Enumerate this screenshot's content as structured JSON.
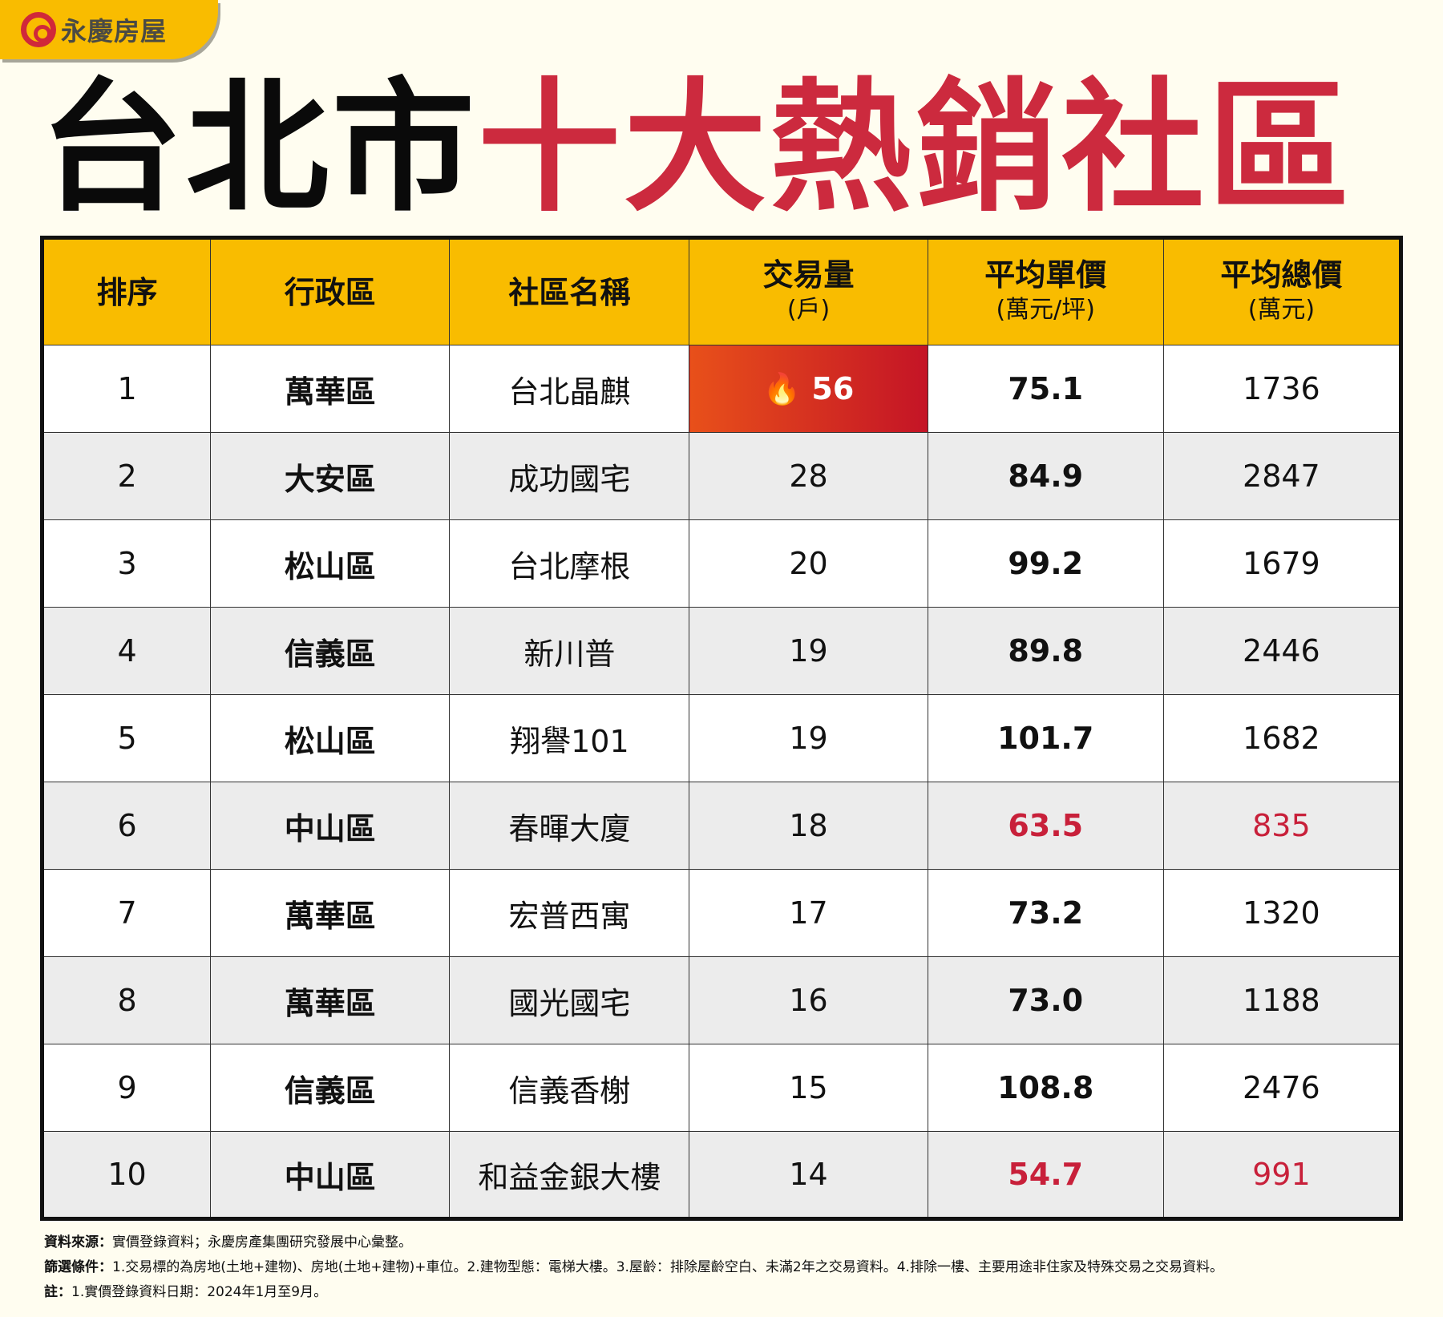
{
  "logo": {
    "text": "永慶房屋"
  },
  "title": {
    "black": "台北市",
    "red": "十大熱銷社區"
  },
  "colors": {
    "accent": "#f9bc00",
    "red": "#cc2a3e",
    "hot": "#d8321f"
  },
  "table": {
    "headers": [
      {
        "label": "排序",
        "unit": ""
      },
      {
        "label": "行政區",
        "unit": ""
      },
      {
        "label": "社區名稱",
        "unit": ""
      },
      {
        "label": "交易量",
        "unit": "(戶)"
      },
      {
        "label": "平均單價",
        "unit": "(萬元/坪)"
      },
      {
        "label": "平均總價",
        "unit": "(萬元)"
      }
    ],
    "rows": [
      {
        "rank": "1",
        "district": "萬華區",
        "name": "台北晶麒",
        "volume": "56",
        "unit_price": "75.1",
        "total": "1736",
        "hot": true
      },
      {
        "rank": "2",
        "district": "大安區",
        "name": "成功國宅",
        "volume": "28",
        "unit_price": "84.9",
        "total": "2847"
      },
      {
        "rank": "3",
        "district": "松山區",
        "name": "台北摩根",
        "volume": "20",
        "unit_price": "99.2",
        "total": "1679"
      },
      {
        "rank": "4",
        "district": "信義區",
        "name": "新川普",
        "volume": "19",
        "unit_price": "89.8",
        "total": "2446"
      },
      {
        "rank": "5",
        "district": "松山區",
        "name": "翔譽101",
        "volume": "19",
        "unit_price": "101.7",
        "total": "1682"
      },
      {
        "rank": "6",
        "district": "中山區",
        "name": "春暉大廈",
        "volume": "18",
        "unit_price": "63.5",
        "total": "835",
        "highlight": true
      },
      {
        "rank": "7",
        "district": "萬華區",
        "name": "宏普西寓",
        "volume": "17",
        "unit_price": "73.2",
        "total": "1320"
      },
      {
        "rank": "8",
        "district": "萬華區",
        "name": "國光國宅",
        "volume": "16",
        "unit_price": "73.0",
        "total": "1188"
      },
      {
        "rank": "9",
        "district": "信義區",
        "name": "信義香榭",
        "volume": "15",
        "unit_price": "108.8",
        "total": "2476"
      },
      {
        "rank": "10",
        "district": "中山區",
        "name": "和益金銀大樓",
        "volume": "14",
        "unit_price": "54.7",
        "total": "991",
        "highlight": true
      }
    ]
  },
  "footer": {
    "source_label": "資料來源：",
    "source": "實價登錄資料；永慶房產集團研究發展中心彙整。",
    "filter_label": "篩選條件：",
    "filter": "1.交易標的為房地(土地+建物)、房地(土地+建物)+車位。2.建物型態：電梯大樓。3.屋齡：排除屋齡空白、未滿2年之交易資料。4.排除一樓、主要用途非住家及特殊交易之交易資料。",
    "note_label": "註：",
    "note": "1.實價登錄資料日期：2024年1月至9月。"
  }
}
